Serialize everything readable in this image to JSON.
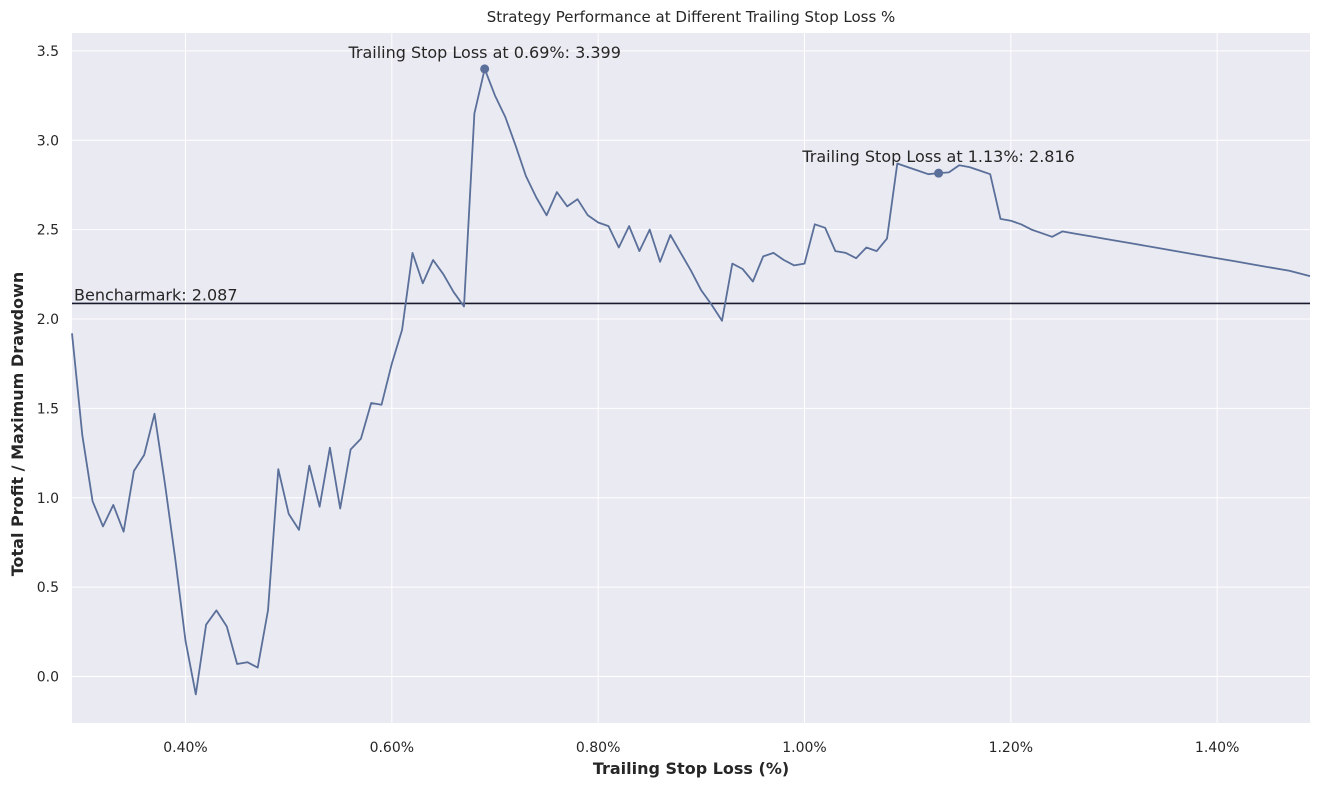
{
  "chart_data": {
    "type": "line",
    "title": "Strategy Performance at Different Trailing Stop Loss %",
    "xlabel": "Trailing Stop Loss (%)",
    "ylabel": "Total Profit / Maximum Drawdown",
    "xlim": [
      0.29,
      1.49
    ],
    "ylim": [
      -0.26,
      3.6
    ],
    "xticks": [
      0.4,
      0.6,
      0.8,
      1.0,
      1.2,
      1.4
    ],
    "xtick_labels": [
      "0.40%",
      "0.60%",
      "0.80%",
      "1.00%",
      "1.20%",
      "1.40%"
    ],
    "yticks": [
      0.0,
      0.5,
      1.0,
      1.5,
      2.0,
      2.5,
      3.0,
      3.5
    ],
    "ytick_labels": [
      "0.0",
      "0.5",
      "1.0",
      "1.5",
      "2.0",
      "2.5",
      "3.0",
      "3.5"
    ],
    "grid": true,
    "colors": {
      "line": "#5a6f99",
      "benchmark": "#1a1a2e",
      "background": "#eaeaf2",
      "grid": "#ffffff"
    },
    "series": [
      {
        "x": [
          0.29,
          0.3,
          0.31,
          0.32,
          0.33,
          0.34,
          0.35,
          0.36,
          0.37,
          0.38,
          0.39,
          0.4,
          0.41,
          0.42,
          0.43,
          0.44,
          0.45,
          0.46,
          0.47,
          0.48,
          0.49,
          0.5,
          0.51,
          0.52,
          0.53,
          0.54,
          0.55,
          0.56,
          0.57,
          0.58,
          0.59,
          0.6,
          0.61,
          0.62,
          0.63,
          0.64,
          0.65,
          0.66,
          0.67,
          0.68,
          0.69,
          0.7,
          0.71,
          0.72,
          0.73,
          0.74,
          0.75,
          0.76,
          0.77,
          0.78,
          0.79,
          0.8,
          0.81,
          0.82,
          0.83,
          0.84,
          0.85,
          0.86,
          0.87,
          0.88,
          0.89,
          0.9,
          0.91,
          0.92,
          0.93,
          0.94,
          0.95,
          0.96,
          0.97,
          0.98,
          0.99,
          1.0,
          1.01,
          1.02,
          1.03,
          1.04,
          1.05,
          1.06,
          1.07,
          1.08,
          1.09,
          1.1,
          1.11,
          1.12,
          1.13,
          1.14,
          1.15,
          1.16,
          1.17,
          1.18,
          1.19,
          1.2,
          1.21,
          1.22,
          1.23,
          1.24,
          1.25,
          1.26,
          1.27,
          1.28,
          1.29,
          1.3,
          1.32,
          1.34,
          1.36,
          1.38,
          1.4,
          1.42,
          1.43,
          1.45,
          1.47,
          1.49
        ],
        "values": [
          1.92,
          1.35,
          0.98,
          0.84,
          0.96,
          0.81,
          1.15,
          1.24,
          1.47,
          1.08,
          0.66,
          0.2,
          -0.1,
          0.29,
          0.37,
          0.28,
          0.07,
          0.08,
          0.05,
          0.37,
          1.16,
          0.91,
          0.82,
          1.18,
          0.95,
          1.28,
          0.94,
          1.27,
          1.33,
          1.53,
          1.52,
          1.75,
          1.94,
          2.37,
          2.2,
          2.33,
          2.25,
          2.15,
          2.07,
          3.15,
          3.399,
          3.25,
          3.13,
          2.97,
          2.8,
          2.68,
          2.58,
          2.71,
          2.63,
          2.67,
          2.58,
          2.54,
          2.52,
          2.4,
          2.52,
          2.38,
          2.5,
          2.32,
          2.47,
          2.37,
          2.27,
          2.16,
          2.08,
          1.99,
          2.31,
          2.28,
          2.21,
          2.35,
          2.37,
          2.33,
          2.3,
          2.31,
          2.53,
          2.51,
          2.38,
          2.37,
          2.34,
          2.4,
          2.38,
          2.45,
          2.87,
          2.85,
          2.83,
          2.81,
          2.816,
          2.82,
          2.86,
          2.85,
          2.83,
          2.81,
          2.56,
          2.55,
          2.53,
          2.5,
          2.48,
          2.46,
          2.49,
          2.48,
          2.47,
          2.46,
          2.45,
          2.44,
          2.42,
          2.4,
          2.38,
          2.36,
          2.34,
          2.32,
          2.31,
          2.29,
          2.27,
          2.24
        ]
      }
    ],
    "benchmark": {
      "value": 2.087,
      "label": "Bencharmark: 2.087"
    },
    "annotations": [
      {
        "x": 0.69,
        "y": 3.399,
        "text": "Trailing Stop Loss at 0.69%: 3.399"
      },
      {
        "x": 1.13,
        "y": 2.816,
        "text": "Trailing Stop Loss at 1.13%: 2.816"
      }
    ]
  }
}
